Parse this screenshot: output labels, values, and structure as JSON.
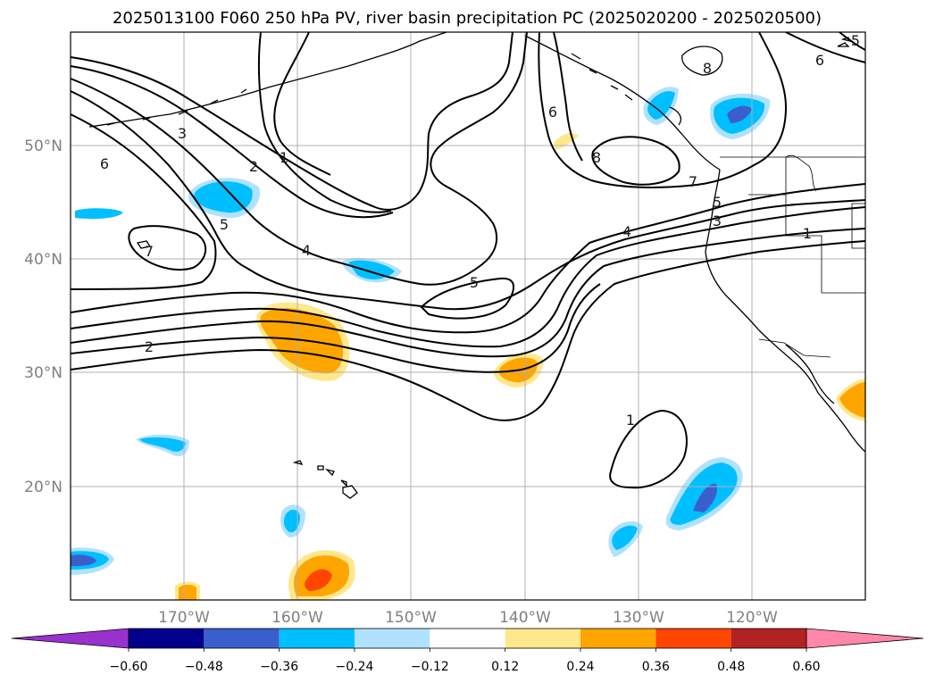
{
  "title": "2025013100 F060 250 hPa PV, river basin precipitation PC (2025020200 - 2025020500)",
  "map": {
    "lon_range": [
      -180,
      -110
    ],
    "lat_range": [
      10,
      60
    ],
    "lon_ticks": [
      {
        "value": -170,
        "label": "170°W"
      },
      {
        "value": -160,
        "label": "160°W"
      },
      {
        "value": -150,
        "label": "150°W"
      },
      {
        "value": -140,
        "label": "140°W"
      },
      {
        "value": -130,
        "label": "130°W"
      },
      {
        "value": -120,
        "label": "120°W"
      }
    ],
    "lat_ticks": [
      {
        "value": 20,
        "label": "20°N"
      },
      {
        "value": 30,
        "label": "30°N"
      },
      {
        "value": 40,
        "label": "40°N"
      },
      {
        "value": 50,
        "label": "50°N"
      }
    ],
    "grid": true,
    "pv_contour_labels": [
      "3",
      "2",
      "1",
      "6",
      "5",
      "4",
      "7",
      "5",
      "6",
      "8",
      "7",
      "5",
      "3",
      "4",
      "1",
      "2",
      "1",
      "8",
      "5",
      "6"
    ]
  },
  "colorbar": {
    "orientation": "horizontal",
    "extend": "both",
    "levels": [
      "−0.60",
      "−0.48",
      "−0.36",
      "−0.24",
      "−0.12",
      "0.12",
      "0.24",
      "0.36",
      "0.48",
      "0.60"
    ],
    "colors": [
      "#9932cc",
      "#00008b",
      "#3a5fcd",
      "#00bfff",
      "#b0e2ff",
      "#ffffff",
      "#ffe88c",
      "#ffa500",
      "#ff4500",
      "#b22222",
      "#ff88aa"
    ]
  }
}
